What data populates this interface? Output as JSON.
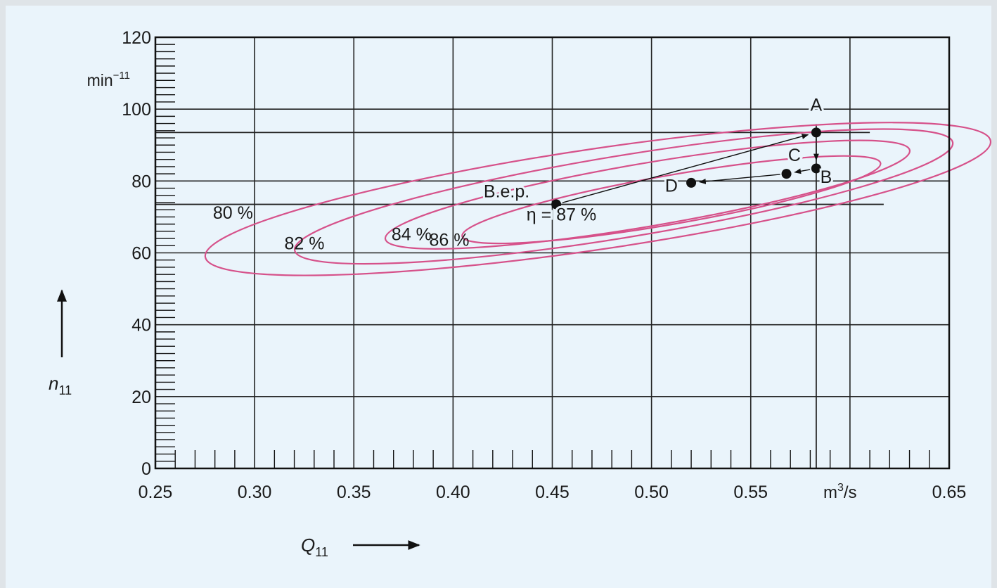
{
  "chart_data": {
    "type": "contour",
    "title": "",
    "xlabel": "Q",
    "xlabel_sub": "11",
    "ylabel": "n",
    "ylabel_sub": "11",
    "x_unit_base": "m",
    "x_unit_sup": "3",
    "x_unit_tail": "/s",
    "y_unit_base": "min",
    "y_unit_sup": "−11",
    "xlim": [
      0.25,
      0.65
    ],
    "ylim": [
      0,
      120
    ],
    "x_ticks": [
      "0.25",
      "0.30",
      "0.35",
      "0.40",
      "0.45",
      "0.50",
      "0.55",
      "0.60",
      "0.65"
    ],
    "x_tick_values": [
      0.25,
      0.3,
      0.35,
      0.4,
      0.45,
      0.5,
      0.55,
      0.6,
      0.65
    ],
    "y_ticks": [
      "0",
      "20",
      "40",
      "60",
      "80",
      "100",
      "120"
    ],
    "y_tick_values": [
      0,
      20,
      40,
      60,
      80,
      100,
      120
    ],
    "curve_color": "#d6518a",
    "contours": [
      {
        "label": "80 %",
        "center": [
          0.473,
          75
        ],
        "semi_axis_a": 0.2,
        "semi_axis_b": 14,
        "angle_deg": -8.4,
        "label_at": [
          0.279,
          69.5
        ]
      },
      {
        "label": "82 %",
        "center": [
          0.486,
          75.7
        ],
        "semi_axis_a": 0.168,
        "semi_axis_b": 11.4,
        "angle_deg": -9.3,
        "label_at": [
          0.315,
          61
        ]
      },
      {
        "label": "84 %",
        "center": [
          0.498,
          76.2
        ],
        "semi_axis_a": 0.134,
        "semi_axis_b": 8.8,
        "angle_deg": -9.6,
        "label_at": [
          0.369,
          63.5
        ]
      },
      {
        "label": "86 %",
        "center": [
          0.51,
          74.8
        ],
        "semi_axis_a": 0.107,
        "semi_axis_b": 6.8,
        "angle_deg": -9.9,
        "label_at": [
          0.388,
          62
        ]
      }
    ],
    "points": [
      {
        "name": "A",
        "x": 0.583,
        "y": 93.5,
        "label_at": [
          0.583,
          99.5
        ]
      },
      {
        "name": "B",
        "x": 0.583,
        "y": 83.5,
        "label_at": [
          0.588,
          79.5
        ]
      },
      {
        "name": "C",
        "x": 0.568,
        "y": 82.0,
        "label_at": [
          0.572,
          85.5
        ]
      },
      {
        "name": "D",
        "x": 0.52,
        "y": 79.5,
        "label_at": [
          0.51,
          77
        ]
      },
      {
        "name": "B.e.p.",
        "x": 0.452,
        "y": 73.5,
        "label_at": [
          0.427,
          75.5
        ]
      }
    ],
    "bep_efficiency_label": "η = 87 %",
    "bep_efficiency_label_at": [
      0.437,
      69
    ],
    "horizontal_refs": [
      {
        "y": 93.5,
        "x_from": 0.25,
        "x_to": 0.61
      },
      {
        "y": 73.5,
        "x_from": 0.25,
        "x_to": 0.617
      }
    ],
    "arrows": [
      {
        "from": "A",
        "to": "B"
      },
      {
        "from": "B",
        "to": "C"
      },
      {
        "from": "C",
        "to": "D"
      },
      {
        "from": "B.e.p.",
        "to": "A"
      }
    ],
    "grid": true
  }
}
